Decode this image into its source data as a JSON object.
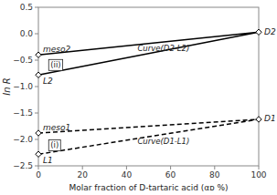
{
  "chart_data": {
    "type": "line",
    "xlabel": "Molar fraction of D-tartaric acid (αᴅ %)",
    "ylabel": "ln R",
    "xlim": [
      0,
      100
    ],
    "ylim": [
      -2.5,
      0.5
    ],
    "xticks": [
      0,
      20,
      40,
      60,
      80,
      100
    ],
    "yticks": [
      {
        "value": -2.5,
        "label": "−2.5"
      },
      {
        "value": -2.0,
        "label": "−2.0"
      },
      {
        "value": -1.5,
        "label": "−1.5"
      },
      {
        "value": -1.0,
        "label": "−1.0"
      },
      {
        "value": -0.5,
        "label": "−0.5"
      },
      {
        "value": 0.0,
        "label": "0.0"
      },
      0.5
    ],
    "grid": false,
    "series": [
      {
        "x": [
          0,
          100,
          0
        ],
        "values": [
          -0.4,
          0.03,
          -0.78
        ],
        "labels": [
          "meso2",
          "D2",
          "L2"
        ],
        "color": "black",
        "line_style": "solid",
        "marker": "diamond"
      },
      {
        "x": [
          0,
          100,
          0
        ],
        "values": [
          -1.88,
          -1.62,
          -2.28
        ],
        "labels": [
          "meso1",
          "D1",
          "L1"
        ],
        "color": "black",
        "line_style": "dashed",
        "marker": "diamond"
      }
    ],
    "annotations": [
      {
        "text": "Curve(D2-L2)",
        "x": 45,
        "y": -0.28
      },
      {
        "text": "Curve(D1-L1)",
        "x": 45,
        "y": -2.05
      }
    ],
    "callouts": [
      {
        "text": "(ii)",
        "x": 5.5,
        "y": -0.6
      },
      {
        "text": "(i)",
        "x": 5.5,
        "y": -2.12
      }
    ]
  }
}
